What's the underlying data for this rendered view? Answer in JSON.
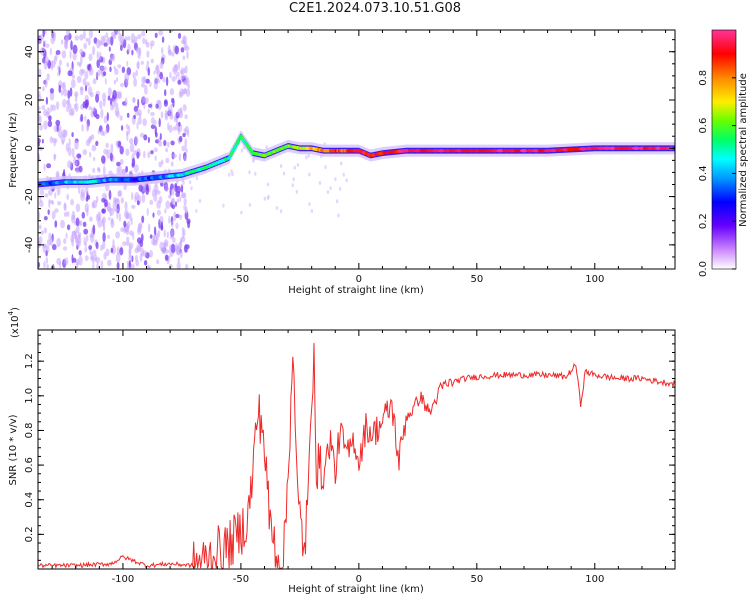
{
  "figure": {
    "title": "C2E1.2024.073.10.51.G08"
  },
  "colors": {
    "snr_line": "#ee2a2a",
    "spectrogram_scatter": "#7a3cf0",
    "colormap": [
      "#ffffff",
      "#cc88ff",
      "#6600ff",
      "#0000ff",
      "#0099ff",
      "#00ffff",
      "#00ff66",
      "#66ff00",
      "#ffee00",
      "#ff8800",
      "#ff0000",
      "#ff0066",
      "#ff3399"
    ]
  },
  "chart_data": [
    {
      "type": "heatmap",
      "xlabel": "Height of straight line (km)",
      "ylabel": "Frequency (Hz)",
      "xlim": [
        -136,
        134
      ],
      "ylim": [
        -50,
        49
      ],
      "x_ticks": [
        -100,
        -50,
        0,
        50,
        100
      ],
      "x_tick_labels": [
        "-100",
        "-50",
        "0",
        "50",
        "100"
      ],
      "y_ticks": [
        -40,
        -20,
        0,
        20,
        40
      ],
      "y_tick_labels": [
        "-40",
        "-20",
        "0",
        "20",
        "40"
      ],
      "colorbar": {
        "label": "Normalized spectral amplitude",
        "range": [
          0,
          1
        ],
        "ticks": [
          0.0,
          0.2,
          0.4,
          0.6,
          0.8
        ],
        "tick_labels": [
          "0.0",
          "0.2",
          "0.4",
          "0.6",
          "0.8"
        ]
      },
      "ridge": {
        "x": [
          -136,
          -125,
          -115,
          -105,
          -95,
          -85,
          -75,
          -65,
          -55,
          -50,
          -45,
          -40,
          -35,
          -30,
          -25,
          -20,
          -15,
          -10,
          -5,
          0,
          5,
          10,
          20,
          40,
          60,
          80,
          100,
          120,
          134
        ],
        "freq": [
          -15,
          -14,
          -14,
          -13,
          -13,
          -12,
          -11,
          -8,
          -4,
          5,
          -2,
          -3,
          -1,
          1,
          0,
          0,
          -1,
          -1,
          -1,
          -1,
          -3,
          -2,
          -1,
          -1,
          -1,
          -1,
          0,
          0,
          0
        ],
        "amplitude": [
          0.3,
          0.4,
          0.5,
          0.35,
          0.3,
          0.35,
          0.45,
          0.55,
          0.5,
          0.55,
          0.55,
          0.6,
          0.6,
          0.6,
          0.65,
          0.75,
          0.8,
          0.85,
          0.85,
          0.9,
          0.9,
          0.9,
          0.95,
          0.95,
          0.95,
          0.95,
          0.95,
          0.95,
          1.0
        ]
      },
      "scatter_region": {
        "x_range": [
          -136,
          -72
        ],
        "freq_range": [
          -50,
          49
        ],
        "amplitude": 0.15
      }
    },
    {
      "type": "line",
      "xlabel": "Height of straight line (km)",
      "ylabel": "SNR (10 * v/v)",
      "y_scale_label": "(x10",
      "y_scale_exponent": "4",
      "xlim": [
        -136,
        134
      ],
      "ylim": [
        0,
        1.38
      ],
      "x_ticks": [
        -100,
        -50,
        0,
        50,
        100
      ],
      "x_tick_labels": [
        "-100",
        "-50",
        "0",
        "50",
        "100"
      ],
      "y_ticks": [
        0.2,
        0.4,
        0.6,
        0.8,
        1.0,
        1.2
      ],
      "y_tick_labels": [
        "0.2",
        "0.4",
        "0.6",
        "0.8",
        "1.0",
        "1.2"
      ],
      "series": [
        {
          "x": [
            -136,
            -120,
            -105,
            -100,
            -90,
            -80,
            -70,
            -65,
            -60,
            -55,
            -50,
            -47,
            -45,
            -43,
            -41,
            -40,
            -38,
            -35,
            -32,
            -30,
            -28,
            -27,
            -26,
            -25,
            -23,
            -21,
            -20,
            -19,
            -18,
            -15,
            -12,
            -10,
            -8,
            -5,
            -2,
            0,
            3,
            6,
            10,
            14,
            17,
            20,
            23,
            26,
            30,
            35,
            40,
            45,
            50,
            60,
            70,
            80,
            88,
            92,
            94,
            96,
            100,
            110,
            120,
            128,
            134
          ],
          "values": [
            0.02,
            0.02,
            0.03,
            0.07,
            0.02,
            0.03,
            0.02,
            0.05,
            0.1,
            0.13,
            0.22,
            0.3,
            0.55,
            0.9,
            0.85,
            0.7,
            0.3,
            0.1,
            0.02,
            0.55,
            1.28,
            0.8,
            0.4,
            0.3,
            0.1,
            0.55,
            0.95,
            1.37,
            0.6,
            0.55,
            0.75,
            0.55,
            0.8,
            0.65,
            0.75,
            0.62,
            0.82,
            0.78,
            0.85,
            0.95,
            0.62,
            0.88,
            0.92,
            1.0,
            0.9,
            1.05,
            1.08,
            1.1,
            1.11,
            1.12,
            1.12,
            1.12,
            1.11,
            1.18,
            0.95,
            1.14,
            1.12,
            1.1,
            1.1,
            1.08,
            1.07
          ]
        }
      ]
    }
  ]
}
